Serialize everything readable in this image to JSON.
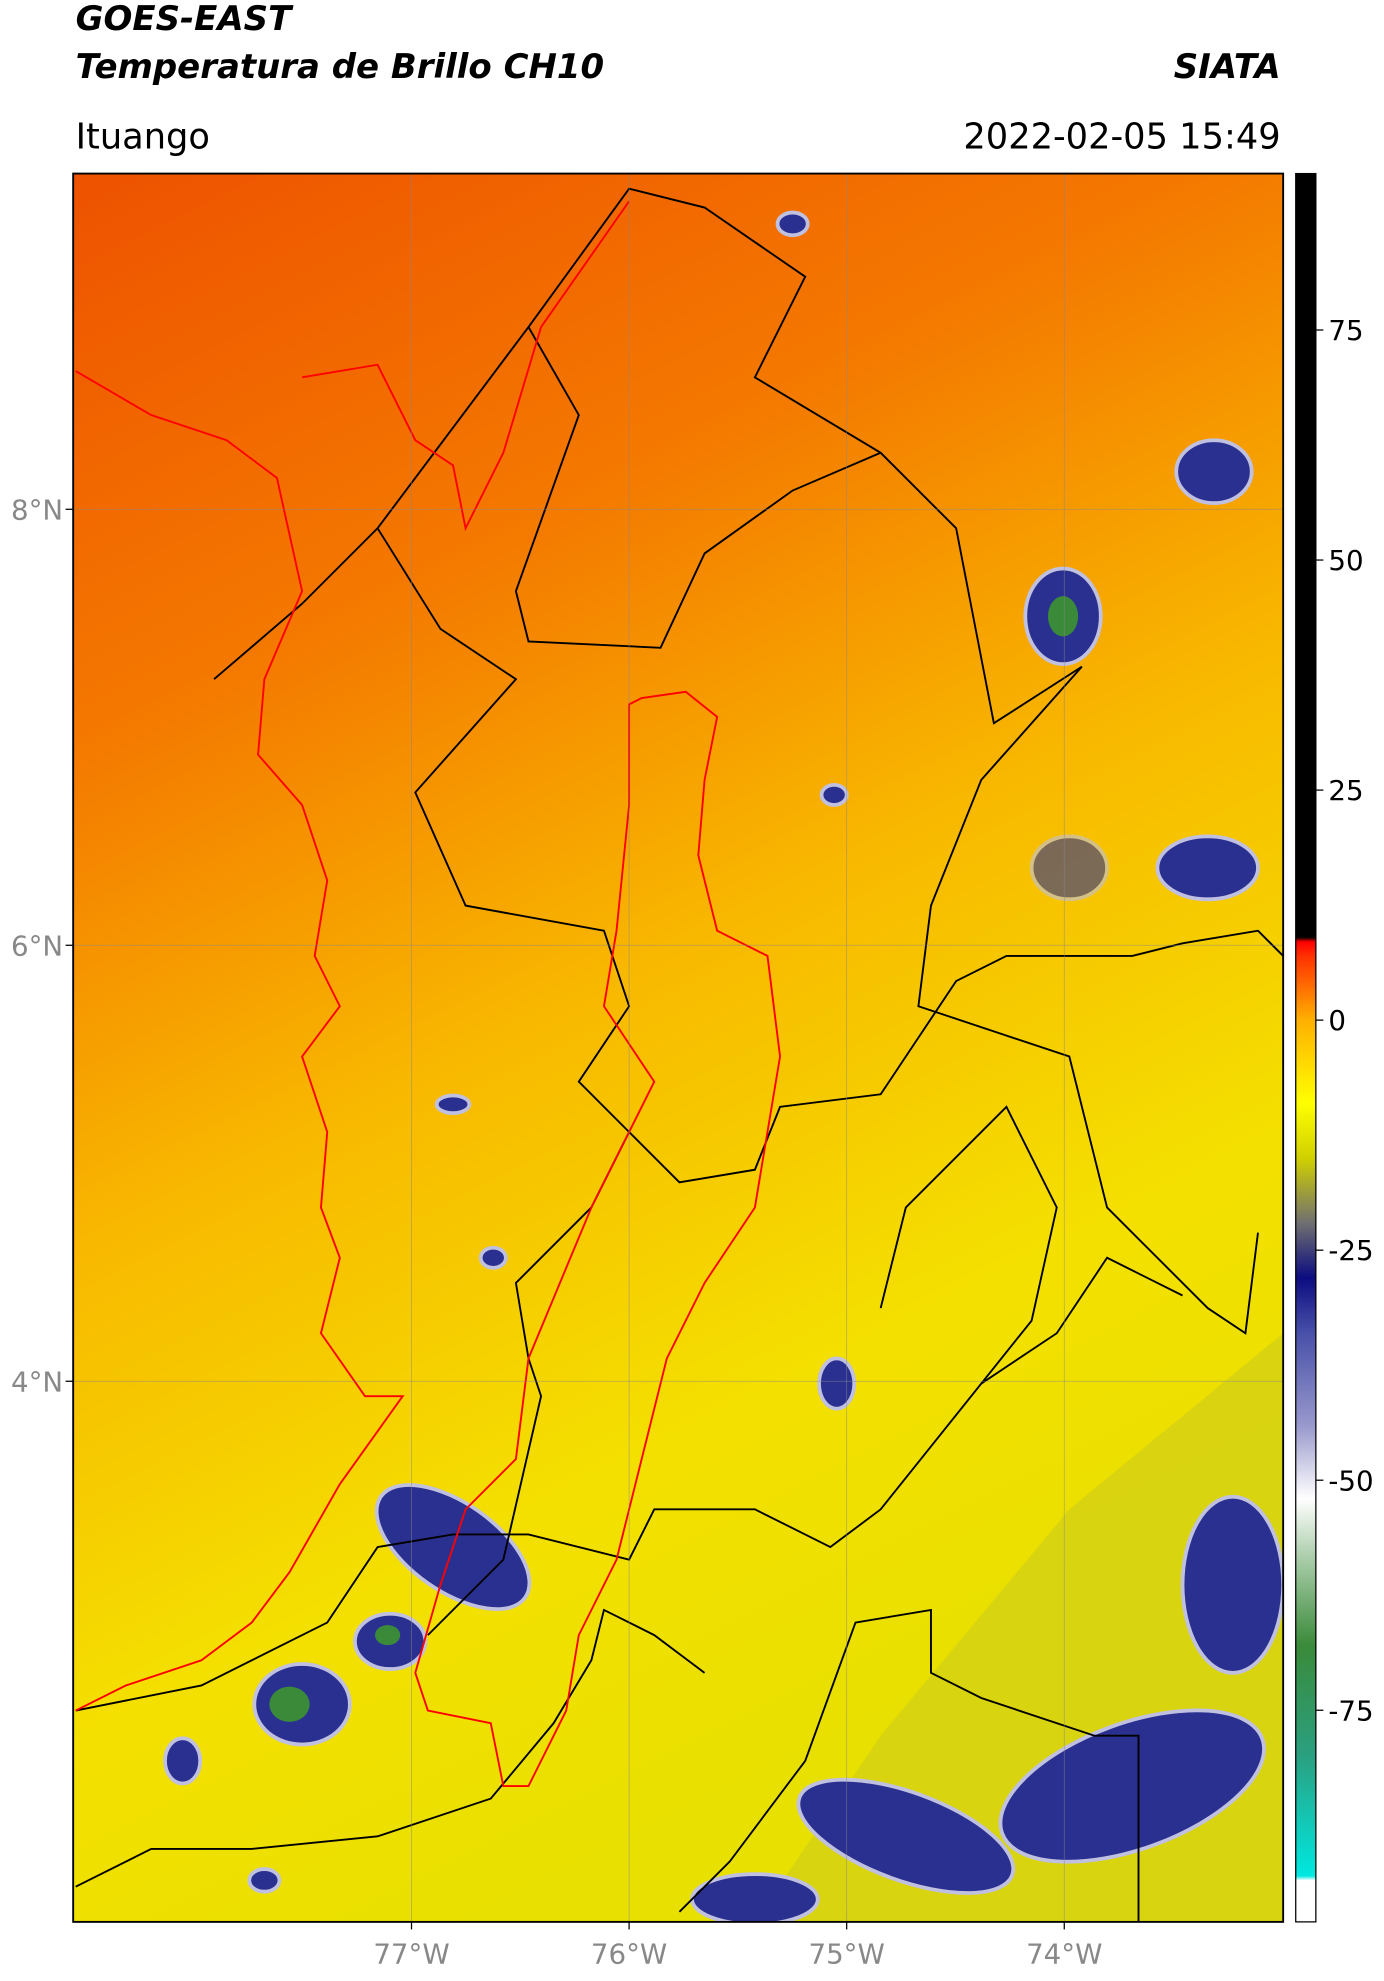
{
  "header": {
    "title": "GOES-EAST",
    "subtitle": "Temperatura de Brillo CH10",
    "brand": "SIATA",
    "location": "Ituango",
    "timestamp": "2022-02-05 15:49"
  },
  "map": {
    "xlim": [
      -78.555,
      -72.994
    ],
    "ylim": [
      1.52,
      9.54
    ],
    "grid": true,
    "xticks": [
      {
        "value": -77,
        "label": "77°W"
      },
      {
        "value": -76,
        "label": "76°W"
      },
      {
        "value": -75,
        "label": "75°W"
      },
      {
        "value": -74,
        "label": "74°W"
      }
    ],
    "yticks": [
      {
        "value": 4,
        "label": "4°N"
      },
      {
        "value": 6,
        "label": "6°N"
      },
      {
        "value": 8,
        "label": "8°N"
      }
    ]
  },
  "colorbar": {
    "lim": [
      -98,
      92
    ],
    "ticks": [
      -75,
      -50,
      -25,
      0,
      25,
      50,
      75
    ],
    "stops": [
      {
        "value": -98,
        "color": "#ffffff"
      },
      {
        "value": -93.5,
        "color": "#ffffff"
      },
      {
        "value": -93,
        "color": "#00e8e0"
      },
      {
        "value": -80,
        "color": "#2aa080"
      },
      {
        "value": -68,
        "color": "#3a8a3a"
      },
      {
        "value": -58,
        "color": "#b0d0b0"
      },
      {
        "value": -52,
        "color": "#ffffff"
      },
      {
        "value": -44,
        "color": "#9898cc"
      },
      {
        "value": -34,
        "color": "#4850a8"
      },
      {
        "value": -28,
        "color": "#0c0c80"
      },
      {
        "value": -22,
        "color": "#707070"
      },
      {
        "value": -15,
        "color": "#d0d000"
      },
      {
        "value": -9,
        "color": "#ffff00"
      },
      {
        "value": 0,
        "color": "#ffb000"
      },
      {
        "value": 7,
        "color": "#ff3000"
      },
      {
        "value": 8.5,
        "color": "#ff0000"
      },
      {
        "value": 9,
        "color": "#000000"
      },
      {
        "value": 92,
        "color": "#000000"
      }
    ]
  }
}
